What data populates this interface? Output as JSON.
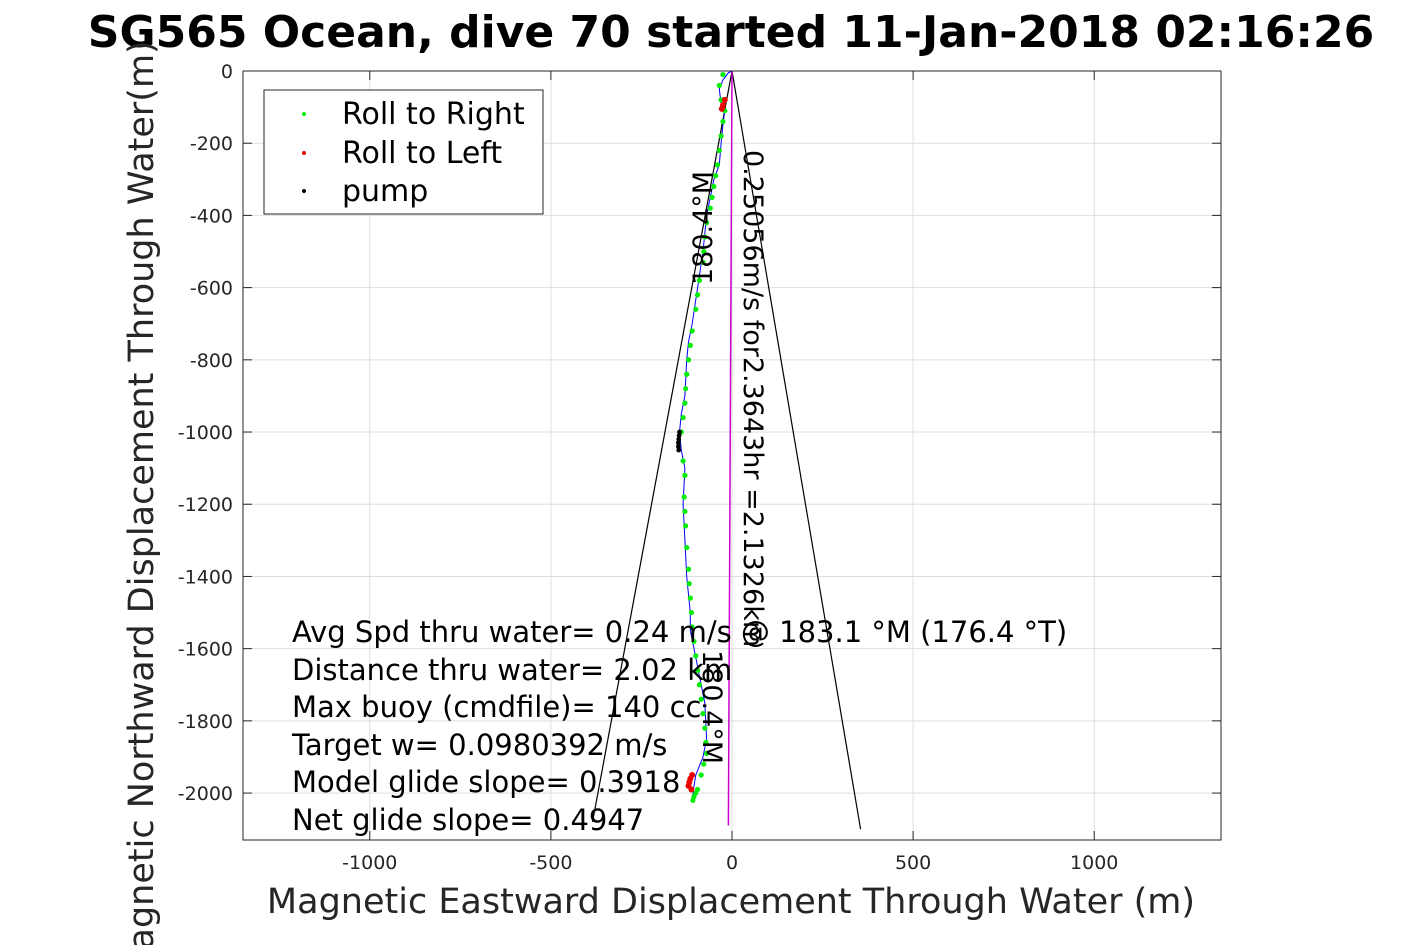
{
  "chart_data": {
    "type": "scatter",
    "title": "SG565 Ocean, dive 70 started 11-Jan-2018 02:16:26",
    "xlabel": "Magnetic Eastward Displacement Through Water (m)",
    "ylabel": "Magnetic Northward Displacement Through Water(m)",
    "xlim": [
      -1350,
      1350
    ],
    "ylim": [
      -2130,
      0
    ],
    "xticks": [
      -1000,
      -500,
      0,
      500,
      1000
    ],
    "yticks": [
      0,
      -200,
      -400,
      -600,
      -800,
      -1000,
      -1200,
      -1400,
      -1600,
      -1800,
      -2000
    ],
    "grid": true,
    "legend_position": "top-left",
    "legend": [
      {
        "label": "Roll to Right",
        "color": "#00ee00"
      },
      {
        "label": "Roll to Left",
        "color": "#ee0000"
      },
      {
        "label": "pump",
        "color": "#000000"
      }
    ],
    "track": {
      "color": "#0000ff",
      "x": [
        0,
        -10,
        -25,
        -35,
        -30,
        -20,
        -25,
        -30,
        -35,
        -50,
        -60,
        -70,
        -75,
        -80,
        -95,
        -110,
        -120,
        -125,
        -130,
        -140,
        -145,
        -140,
        -130,
        -135,
        -130,
        -125,
        -120,
        -115,
        -115,
        -105,
        -95,
        -85,
        -75,
        -70,
        -80,
        -100,
        -105,
        -110
      ],
      "y": [
        0,
        -5,
        -25,
        -50,
        -90,
        -110,
        -150,
        -200,
        -260,
        -300,
        -350,
        -400,
        -450,
        -500,
        -600,
        -700,
        -750,
        -800,
        -900,
        -950,
        -1000,
        -1050,
        -1100,
        -1200,
        -1300,
        -1400,
        -1450,
        -1500,
        -1550,
        -1600,
        -1650,
        -1700,
        -1750,
        -1850,
        -1900,
        -1950,
        -1980,
        -2020
      ]
    },
    "heading_line": {
      "color": "#cc00cc",
      "x": [
        0,
        -10
      ],
      "y": [
        0,
        -2090
      ]
    },
    "cone_lines": [
      {
        "color": "#000000",
        "x": [
          0,
          -385
        ],
        "y": [
          0,
          -2080
        ]
      },
      {
        "color": "#000000",
        "x": [
          0,
          355
        ],
        "y": [
          0,
          -2100
        ]
      }
    ],
    "roll_right": {
      "color": "#00ee00",
      "x": [
        -25,
        -35,
        -30,
        -20,
        -25,
        -30,
        -35,
        -40,
        -45,
        -50,
        -55,
        -60,
        -70,
        -75,
        -78,
        -80,
        -90,
        -95,
        -100,
        -110,
        -115,
        -120,
        -125,
        -128,
        -130,
        -135,
        -140,
        -135,
        -130,
        -132,
        -130,
        -128,
        -125,
        -120,
        -118,
        -115,
        -112,
        -110,
        -105,
        -100,
        -95,
        -90,
        -85,
        -80,
        -75,
        -72,
        -70,
        -78,
        -85,
        -95,
        -100,
        -105,
        -108
      ],
      "y": [
        -10,
        -40,
        -80,
        -110,
        -140,
        -180,
        -220,
        -260,
        -290,
        -320,
        -350,
        -380,
        -420,
        -460,
        -500,
        -530,
        -580,
        -620,
        -660,
        -720,
        -760,
        -800,
        -840,
        -880,
        -920,
        -960,
        -1000,
        -1080,
        -1120,
        -1180,
        -1220,
        -1260,
        -1320,
        -1380,
        -1420,
        -1460,
        -1500,
        -1540,
        -1580,
        -1620,
        -1660,
        -1700,
        -1740,
        -1780,
        -1820,
        -1860,
        -1890,
        -1920,
        -1950,
        -1990,
        -2000,
        -2010,
        -2020
      ]
    },
    "roll_left": {
      "color": "#ee0000",
      "x": [
        -20,
        -25,
        -28,
        -110,
        -115,
        -118,
        -120,
        -112
      ],
      "y": [
        -80,
        -95,
        -105,
        -1950,
        -1960,
        -1970,
        -1980,
        -1990
      ]
    },
    "pump": {
      "color": "#000000",
      "x": [
        -145,
        -146,
        -147,
        -148,
        -148,
        -147
      ],
      "y": [
        -1000,
        -1010,
        -1020,
        -1030,
        -1040,
        -1050
      ]
    },
    "text_annotations": [
      {
        "text": "0.25056m/s for2.3643hr =2.1326km",
        "rotation": 90
      },
      {
        "text": "180.4°M",
        "rotation": -90
      },
      {
        "text": "180.4°M",
        "rotation": 90
      }
    ],
    "stats": [
      "Avg Spd thru water=  0.24 m/s @ 183.1 °M (176.4 °T)",
      "Distance thru water=  2.02 km",
      "Max buoy (cmdfile)= 140  cc",
      "Target w= 0.0980392 m/s",
      "Model glide slope= 0.3918",
      "Net glide slope= 0.4947"
    ]
  }
}
